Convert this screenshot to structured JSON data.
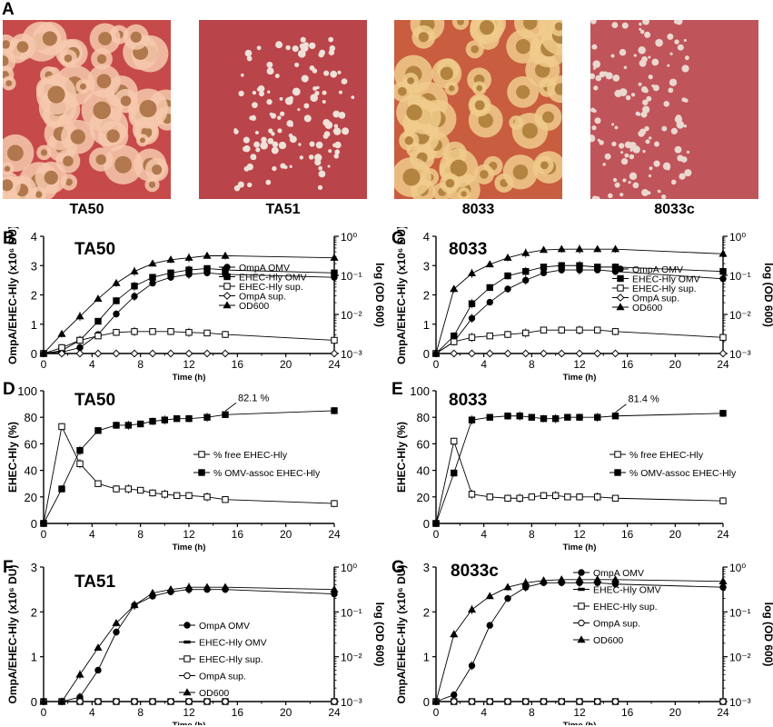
{
  "panels": {
    "A": "A",
    "B": "B",
    "C": "C",
    "D": "D",
    "E": "E",
    "F": "F",
    "G": "G"
  },
  "photos": [
    {
      "label": "TA50",
      "bg": "#c64a4a",
      "colony": "#b0784c",
      "halo": "#f6c9ad"
    },
    {
      "label": "TA51",
      "bg": "#b9444a",
      "colony": "#eee1d8",
      "halo": "#c75a5e"
    },
    {
      "label": "8033",
      "bg": "#c85d3f",
      "colony": "#b3843f",
      "halo": "#f0cb8c"
    },
    {
      "label": "8033c",
      "bg": "#c0545b",
      "colony": "#ead8cf",
      "halo": "#cc6e74"
    }
  ],
  "chart_data": [
    {
      "panel": "B",
      "title": "TA50",
      "type": "line",
      "xlabel": "Time (h)",
      "ylabel": "OmpA/EHEC-Hly (x10⁶ DU)",
      "y2label": "log (OD 600)",
      "xlim": [
        0,
        24
      ],
      "ylim": [
        0,
        4
      ],
      "y2lim": [
        -3,
        0
      ],
      "xticks": [
        "0",
        "4",
        "8",
        "12",
        "16",
        "20",
        "24"
      ],
      "yticks": [
        "0",
        "1",
        "2",
        "3",
        "4"
      ],
      "y2ticks": [
        "10⁻³",
        "10⁻²",
        "10⁻¹",
        "10⁰"
      ],
      "series": [
        {
          "name": "OmpA OMV",
          "marker": "circle-filled",
          "x": [
            0,
            1.5,
            3,
            4.5,
            6,
            7.5,
            9,
            10.5,
            12,
            13.5,
            15,
            24
          ],
          "y": [
            0,
            0.05,
            0.2,
            0.65,
            1.35,
            1.95,
            2.4,
            2.6,
            2.7,
            2.75,
            2.7,
            2.6
          ]
        },
        {
          "name": "EHEC-Hly OMV",
          "marker": "square-filled",
          "x": [
            0,
            1.5,
            3,
            4.5,
            6,
            7.5,
            9,
            10.5,
            12,
            13.5,
            15,
            24
          ],
          "y": [
            0,
            0.1,
            0.45,
            1.1,
            1.8,
            2.3,
            2.6,
            2.75,
            2.85,
            2.9,
            2.85,
            2.75
          ]
        },
        {
          "name": "EHEC-Hly sup.",
          "marker": "square-open",
          "x": [
            0,
            1.5,
            3,
            4.5,
            6,
            7.5,
            9,
            10.5,
            12,
            13.5,
            15,
            24
          ],
          "y": [
            0,
            0.2,
            0.45,
            0.6,
            0.72,
            0.75,
            0.75,
            0.75,
            0.72,
            0.7,
            0.65,
            0.45
          ]
        },
        {
          "name": "OmpA sup.",
          "marker": "diamond-open",
          "x": [
            0,
            1.5,
            3,
            4.5,
            6,
            7.5,
            9,
            10.5,
            12,
            13.5,
            15,
            24
          ],
          "y": [
            0,
            0,
            0,
            0,
            0,
            0,
            0,
            0,
            0,
            0,
            0,
            0
          ]
        },
        {
          "name": "OD600",
          "marker": "triangle-filled",
          "axis": "right",
          "x": [
            0,
            1.5,
            3,
            4.5,
            6,
            7.5,
            9,
            10.5,
            12,
            13.5,
            15,
            24
          ],
          "y": [
            -3,
            -2.5,
            -2.05,
            -1.6,
            -1.2,
            -0.9,
            -0.7,
            -0.6,
            -0.55,
            -0.5,
            -0.5,
            -0.55
          ]
        }
      ]
    },
    {
      "panel": "C",
      "title": "8033",
      "type": "line",
      "xlabel": "Time (h)",
      "ylabel": "OmpA/EHEC-Hly (x10⁶ DU)",
      "y2label": "log (OD 600)",
      "xlim": [
        0,
        24
      ],
      "ylim": [
        0,
        4
      ],
      "y2lim": [
        -3,
        0
      ],
      "xticks": [
        "0",
        "4",
        "8",
        "12",
        "16",
        "20",
        "24"
      ],
      "yticks": [
        "0",
        "1",
        "2",
        "3",
        "4"
      ],
      "y2ticks": [
        "10⁻³",
        "10⁻²",
        "10⁻¹",
        "10⁰"
      ],
      "series": [
        {
          "name": "OmpA OMV",
          "marker": "circle-filled",
          "x": [
            0,
            1.5,
            3,
            4.5,
            6,
            7.5,
            9,
            10.5,
            12,
            13.5,
            15,
            24
          ],
          "y": [
            0,
            0.4,
            1.2,
            1.75,
            2.2,
            2.5,
            2.75,
            2.85,
            2.85,
            2.85,
            2.8,
            2.55
          ]
        },
        {
          "name": "EHEC-Hly OMV",
          "marker": "square-filled",
          "x": [
            0,
            1.5,
            3,
            4.5,
            6,
            7.5,
            9,
            10.5,
            12,
            13.5,
            15,
            24
          ],
          "y": [
            0,
            0.6,
            1.7,
            2.25,
            2.65,
            2.8,
            2.95,
            3.0,
            3.0,
            2.95,
            2.95,
            2.8
          ]
        },
        {
          "name": "EHEC-Hly sup.",
          "marker": "square-open",
          "x": [
            0,
            1.5,
            3,
            4.5,
            6,
            7.5,
            9,
            10.5,
            12,
            13.5,
            15,
            24
          ],
          "y": [
            0,
            0.4,
            0.55,
            0.6,
            0.65,
            0.7,
            0.8,
            0.8,
            0.8,
            0.8,
            0.75,
            0.55
          ]
        },
        {
          "name": "OmpA sup.",
          "marker": "diamond-open",
          "x": [
            0,
            1.5,
            3,
            4.5,
            6,
            7.5,
            9,
            10.5,
            12,
            13.5,
            15,
            24
          ],
          "y": [
            0,
            0,
            0,
            0,
            0,
            0,
            0,
            0,
            0,
            0,
            0,
            0
          ]
        },
        {
          "name": "OD600",
          "marker": "triangle-filled",
          "axis": "right",
          "x": [
            0,
            1.5,
            3,
            4.5,
            6,
            7.5,
            9,
            10.5,
            12,
            13.5,
            15,
            24
          ],
          "y": [
            -3,
            -1.35,
            -0.95,
            -0.72,
            -0.55,
            -0.43,
            -0.35,
            -0.33,
            -0.33,
            -0.33,
            -0.33,
            -0.45
          ]
        }
      ]
    },
    {
      "panel": "D",
      "title": "TA50",
      "type": "line",
      "xlabel": "Time (h)",
      "ylabel": "EHEC-Hly (%)",
      "xlim": [
        0,
        24
      ],
      "ylim": [
        0,
        100
      ],
      "xticks": [
        "0",
        "4",
        "8",
        "12",
        "16",
        "20",
        "24"
      ],
      "yticks": [
        "0",
        "20",
        "40",
        "60",
        "80",
        "100"
      ],
      "annotation": "82.1 %",
      "series": [
        {
          "name": "% free EHEC-Hly",
          "marker": "square-open",
          "x": [
            0,
            1.5,
            3,
            4.5,
            6,
            7,
            8,
            9,
            10,
            11,
            12,
            13.5,
            15,
            24
          ],
          "y": [
            0,
            73,
            45,
            30,
            26,
            26,
            25,
            23,
            22,
            21,
            21,
            20,
            18,
            15
          ]
        },
        {
          "name": "% OMV-assoc EHEC-Hly",
          "marker": "square-filled",
          "x": [
            0,
            1.5,
            3,
            4.5,
            6,
            7,
            8,
            9,
            10,
            11,
            12,
            13.5,
            15,
            24
          ],
          "y": [
            0,
            26,
            55,
            70,
            74,
            74,
            75,
            77,
            78,
            79,
            79,
            80,
            82,
            85
          ]
        }
      ]
    },
    {
      "panel": "E",
      "title": "8033",
      "type": "line",
      "xlabel": "Time (h)",
      "ylabel": "EHEC-Hly (%)",
      "xlim": [
        0,
        24
      ],
      "ylim": [
        0,
        100
      ],
      "xticks": [
        "0",
        "4",
        "8",
        "12",
        "16",
        "20",
        "24"
      ],
      "yticks": [
        "0",
        "20",
        "40",
        "60",
        "80",
        "100"
      ],
      "annotation": "81.4 %",
      "series": [
        {
          "name": "% free EHEC-Hly",
          "marker": "square-open",
          "x": [
            0,
            1.5,
            3,
            4.5,
            6,
            7,
            8,
            9,
            10,
            11,
            12,
            13.5,
            15,
            24
          ],
          "y": [
            0,
            62,
            22,
            20,
            19,
            19,
            20,
            21,
            21,
            20,
            20,
            20,
            19,
            17
          ]
        },
        {
          "name": "% OMV-assoc EHEC-Hly",
          "marker": "square-filled",
          "x": [
            0,
            1.5,
            3,
            4.5,
            6,
            7,
            8,
            9,
            10,
            11,
            12,
            13.5,
            15,
            24
          ],
          "y": [
            0,
            38,
            78,
            80,
            81,
            81,
            80,
            79,
            79,
            80,
            80,
            80,
            81,
            83
          ]
        }
      ]
    },
    {
      "panel": "F",
      "title": "TA51",
      "type": "line",
      "xlabel": "Time (h)",
      "ylabel": "OmpA/EHEC-Hly (x10⁶ DU)",
      "y2label": "log (OD 600)",
      "xlim": [
        0,
        24
      ],
      "ylim": [
        0,
        3
      ],
      "y2lim": [
        -3,
        0
      ],
      "xticks": [
        "0",
        "4",
        "8",
        "12",
        "16",
        "20",
        "24"
      ],
      "yticks": [
        "0",
        "1",
        "2",
        "3"
      ],
      "y2ticks": [
        "10⁻³",
        "10⁻²",
        "10⁻¹",
        "10⁰"
      ],
      "series": [
        {
          "name": "OmpA OMV",
          "marker": "circle-filled",
          "x": [
            0,
            1.5,
            3,
            4.5,
            6,
            7.5,
            9,
            10.5,
            12,
            13.5,
            15,
            24
          ],
          "y": [
            0,
            0,
            0.1,
            0.7,
            1.55,
            2.15,
            2.35,
            2.45,
            2.5,
            2.5,
            2.5,
            2.4
          ]
        },
        {
          "name": "EHEC-Hly OMV",
          "marker": "dash-filled",
          "x": [
            0,
            1.5,
            3,
            4.5,
            6,
            7.5,
            9,
            10.5,
            12,
            13.5,
            15,
            24
          ],
          "y": [
            0,
            0,
            0,
            0,
            0,
            0,
            0,
            0,
            0,
            0,
            0,
            0
          ]
        },
        {
          "name": "EHEC-Hly sup.",
          "marker": "square-open",
          "x": [
            0,
            1.5,
            3,
            4.5,
            6,
            7.5,
            9,
            10.5,
            12,
            13.5,
            15,
            24
          ],
          "y": [
            0,
            0,
            0,
            0,
            0,
            0,
            0,
            0,
            0,
            0,
            0,
            0
          ]
        },
        {
          "name": "OmpA sup.",
          "marker": "circle-open",
          "x": [
            0,
            1.5,
            3,
            4.5,
            6,
            7.5,
            9,
            10.5,
            12,
            13.5,
            15,
            24
          ],
          "y": [
            0,
            0,
            0,
            0,
            0,
            0,
            0,
            0,
            0,
            0,
            0,
            0
          ]
        },
        {
          "name": "OD600",
          "marker": "triangle-filled",
          "axis": "right",
          "x": [
            0,
            1.5,
            3,
            4.5,
            6,
            7.5,
            9,
            10.5,
            12,
            13.5,
            15,
            24
          ],
          "y": [
            -3,
            -3,
            -2.4,
            -1.8,
            -1.25,
            -0.85,
            -0.58,
            -0.5,
            -0.45,
            -0.45,
            -0.45,
            -0.5
          ]
        }
      ]
    },
    {
      "panel": "G",
      "title": "8033c",
      "type": "line",
      "xlabel": "Time (h)",
      "ylabel": "OmpA/EHEC-Hly (x10⁶ DU)",
      "y2label": "log (OD 600)",
      "xlim": [
        0,
        24
      ],
      "ylim": [
        0,
        3
      ],
      "y2lim": [
        -3,
        0
      ],
      "xticks": [
        "0",
        "4",
        "8",
        "12",
        "16",
        "20",
        "24"
      ],
      "yticks": [
        "0",
        "1",
        "2",
        "3"
      ],
      "y2ticks": [
        "10⁻³",
        "10⁻²",
        "10⁻¹",
        "10⁰"
      ],
      "series": [
        {
          "name": "OmpA OMV",
          "marker": "circle-filled",
          "x": [
            0,
            1.5,
            3,
            4.5,
            6,
            7.5,
            9,
            10.5,
            12,
            13.5,
            15,
            24
          ],
          "y": [
            0,
            0.15,
            0.8,
            1.7,
            2.3,
            2.55,
            2.65,
            2.65,
            2.65,
            2.65,
            2.62,
            2.55
          ]
        },
        {
          "name": "EHEC-Hly OMV",
          "marker": "dash-filled",
          "x": [
            0,
            1.5,
            3,
            4.5,
            6,
            7.5,
            9,
            10.5,
            12,
            13.5,
            15,
            24
          ],
          "y": [
            0,
            0,
            0,
            0,
            0,
            0,
            0,
            0,
            0,
            0,
            0,
            0
          ]
        },
        {
          "name": "EHEC-Hly sup.",
          "marker": "square-open",
          "x": [
            0,
            1.5,
            3,
            4.5,
            6,
            7.5,
            9,
            10.5,
            12,
            13.5,
            15,
            24
          ],
          "y": [
            0,
            0,
            0,
            0,
            0,
            0,
            0,
            0,
            0,
            0,
            0,
            0
          ]
        },
        {
          "name": "OmpA sup.",
          "marker": "circle-open",
          "x": [
            0,
            1.5,
            3,
            4.5,
            6,
            7.5,
            9,
            10.5,
            12,
            13.5,
            15,
            24
          ],
          "y": [
            0,
            0,
            0,
            0,
            0,
            0,
            0,
            0,
            0,
            0,
            0,
            0
          ]
        },
        {
          "name": "OD600",
          "marker": "triangle-filled",
          "axis": "right",
          "x": [
            0,
            1.5,
            3,
            4.5,
            6,
            7.5,
            9,
            10.5,
            12,
            13.5,
            15,
            24
          ],
          "y": [
            -3,
            -1.5,
            -0.95,
            -0.65,
            -0.45,
            -0.35,
            -0.3,
            -0.28,
            -0.28,
            -0.28,
            -0.28,
            -0.32
          ]
        }
      ]
    }
  ]
}
